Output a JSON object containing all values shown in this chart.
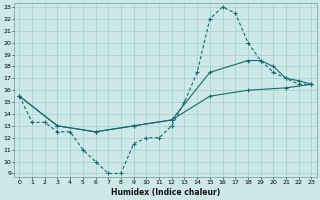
{
  "xlabel": "Humidex (Indice chaleur)",
  "background_color": "#cce8e8",
  "grid_color": "#aacece",
  "line_color": "#1a6b6b",
  "xlim": [
    0,
    23
  ],
  "ylim": [
    9,
    23
  ],
  "yticks": [
    9,
    10,
    11,
    12,
    13,
    14,
    15,
    16,
    17,
    18,
    19,
    20,
    21,
    22,
    23
  ],
  "xticks": [
    0,
    1,
    2,
    3,
    4,
    5,
    6,
    7,
    8,
    9,
    10,
    11,
    12,
    13,
    14,
    15,
    16,
    17,
    18,
    19,
    20,
    21,
    22,
    23
  ],
  "line_dashed_x": [
    0,
    1,
    2,
    3,
    4,
    5,
    6,
    7,
    8,
    9,
    10,
    11,
    12,
    13,
    14,
    15,
    16,
    17,
    18,
    19,
    20,
    21,
    22,
    23
  ],
  "line_dashed_y": [
    15.5,
    13.3,
    13.3,
    12.5,
    12.5,
    11.0,
    10.0,
    9.0,
    9.0,
    11.5,
    12.0,
    12.0,
    13.0,
    15.0,
    17.5,
    22.0,
    23.0,
    22.5,
    20.0,
    18.5,
    17.5,
    17.0,
    16.5,
    16.5
  ],
  "line_solid_low_x": [
    0,
    3,
    6,
    9,
    12,
    15,
    18,
    21,
    23
  ],
  "line_solid_low_y": [
    15.5,
    13.0,
    12.5,
    13.0,
    13.5,
    15.5,
    16.0,
    16.2,
    16.5
  ],
  "line_solid_high_x": [
    0,
    3,
    6,
    9,
    12,
    15,
    18,
    19,
    20,
    21,
    22,
    23
  ],
  "line_solid_high_y": [
    15.5,
    13.0,
    12.5,
    13.0,
    13.5,
    17.5,
    18.5,
    18.5,
    18.0,
    17.0,
    16.8,
    16.5
  ]
}
